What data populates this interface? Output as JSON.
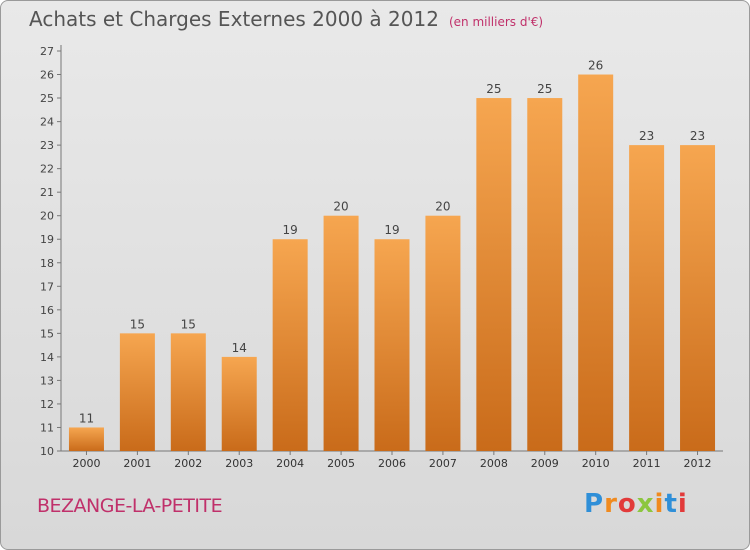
{
  "title": "Achats et Charges Externes 2000 à 2012",
  "unit": "(en milliers d'€)",
  "place": "BEZANGE-LA-PETITE",
  "logo": "Proxiti",
  "colors": {
    "bar_light": "#f5a14a",
    "bar_dark": "#cc6f1c",
    "accent": "#c0306a"
  },
  "chart_data": {
    "type": "bar",
    "title": "Achats et Charges Externes 2000 à 2012",
    "unit": "(en milliers d'€)",
    "categories": [
      "2000",
      "2001",
      "2002",
      "2003",
      "2004",
      "2005",
      "2006",
      "2007",
      "2008",
      "2009",
      "2010",
      "2011",
      "2012"
    ],
    "values": [
      11,
      15,
      15,
      14,
      19,
      20,
      19,
      20,
      25,
      25,
      26,
      23,
      23
    ],
    "ylim": [
      10,
      27
    ],
    "yticks": [
      10,
      11,
      12,
      13,
      14,
      15,
      16,
      17,
      18,
      19,
      20,
      21,
      22,
      23,
      24,
      25,
      26,
      27
    ],
    "grid": false,
    "legend": "none"
  }
}
